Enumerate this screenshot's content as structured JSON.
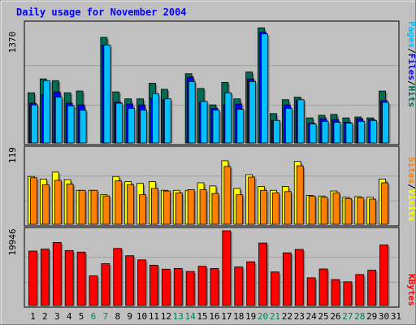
{
  "title": "Daily usage for November 2004",
  "colors": {
    "hits": "#006c54",
    "files": "#0000ff",
    "pages": "#00c0ff",
    "visits": "#ffff00",
    "sites": "#ff8000",
    "kbytes": "#ff0000",
    "weekday": "#000000",
    "weekend": "#00805c",
    "separator": "#000000"
  },
  "panels": {
    "top": {
      "max_label": "1370",
      "legend": [
        "Pages",
        "/",
        "Files",
        "/",
        "Hits"
      ]
    },
    "middle": {
      "max_label": "119",
      "legend": [
        "Sites",
        "/",
        "Visits"
      ]
    },
    "bottom": {
      "max_label": "19946",
      "legend": [
        "KBytes"
      ]
    }
  },
  "chart_data": [
    {
      "type": "bar",
      "title": "Daily usage for November 2004",
      "ylim": [
        0,
        1370
      ],
      "categories": [
        "1",
        "2",
        "3",
        "4",
        "5",
        "6",
        "7",
        "8",
        "9",
        "10",
        "11",
        "12",
        "13",
        "14",
        "15",
        "16",
        "17",
        "18",
        "19",
        "20",
        "21",
        "22",
        "23",
        "24",
        "25",
        "26",
        "27",
        "28",
        "29",
        "30",
        "31"
      ],
      "weekend_days": [
        "6",
        "7",
        "13",
        "14",
        "20",
        "21",
        "27",
        "28"
      ],
      "series": [
        {
          "name": "Hits",
          "values": [
            580,
            740,
            720,
            580,
            600,
            null,
            1220,
            590,
            510,
            510,
            690,
            620,
            null,
            800,
            630,
            440,
            700,
            510,
            820,
            1330,
            340,
            500,
            530,
            290,
            320,
            330,
            290,
            300,
            290,
            600,
            null
          ]
        },
        {
          "name": "Files",
          "values": [
            460,
            560,
            590,
            460,
            440,
            null,
            1130,
            470,
            450,
            440,
            520,
            500,
            null,
            760,
            470,
            400,
            440,
            450,
            740,
            1280,
            260,
            440,
            490,
            230,
            280,
            270,
            240,
            280,
            270,
            490,
            null
          ]
        },
        {
          "name": "Pages",
          "values": [
            440,
            720,
            530,
            430,
            380,
            null,
            1130,
            460,
            400,
            380,
            570,
            510,
            null,
            710,
            480,
            380,
            580,
            390,
            710,
            1260,
            260,
            400,
            500,
            220,
            250,
            240,
            230,
            250,
            260,
            470,
            null
          ]
        }
      ]
    },
    {
      "type": "bar",
      "ylim": [
        0,
        119
      ],
      "categories": [
        "1",
        "2",
        "3",
        "4",
        "5",
        "6",
        "7",
        "8",
        "9",
        "10",
        "11",
        "12",
        "13",
        "14",
        "15",
        "16",
        "17",
        "18",
        "19",
        "20",
        "21",
        "22",
        "23",
        "24",
        "25",
        "26",
        "27",
        "28",
        "29",
        "30",
        "31"
      ],
      "series": [
        {
          "name": "Visits",
          "values": [
            76,
            72,
            83,
            71,
            54,
            54,
            47,
            76,
            68,
            65,
            68,
            54,
            54,
            54,
            66,
            61,
            101,
            57,
            79,
            60,
            54,
            60,
            100,
            46,
            45,
            53,
            43,
            44,
            43,
            72,
            null
          ]
        },
        {
          "name": "Sites",
          "values": [
            74,
            63,
            70,
            64,
            54,
            54,
            45,
            69,
            63,
            47,
            57,
            53,
            50,
            55,
            55,
            49,
            92,
            47,
            75,
            54,
            50,
            52,
            93,
            45,
            43,
            50,
            41,
            42,
            40,
            66,
            null
          ]
        }
      ]
    },
    {
      "type": "bar",
      "ylim": [
        0,
        19946
      ],
      "categories": [
        "1",
        "2",
        "3",
        "4",
        "5",
        "6",
        "7",
        "8",
        "9",
        "10",
        "11",
        "12",
        "13",
        "14",
        "15",
        "16",
        "17",
        "18",
        "19",
        "20",
        "21",
        "22",
        "23",
        "24",
        "25",
        "26",
        "27",
        "28",
        "29",
        "30",
        "31"
      ],
      "series": [
        {
          "name": "KBytes",
          "values": [
            14530,
            15060,
            16820,
            14660,
            14250,
            7910,
            11160,
            15230,
            13290,
            12180,
            10760,
            9700,
            9880,
            9070,
            10460,
            9870,
            19946,
            10290,
            11670,
            16670,
            8960,
            14060,
            14960,
            7400,
            9750,
            6910,
            6330,
            8270,
            9430,
            16160,
            null
          ]
        }
      ]
    }
  ]
}
